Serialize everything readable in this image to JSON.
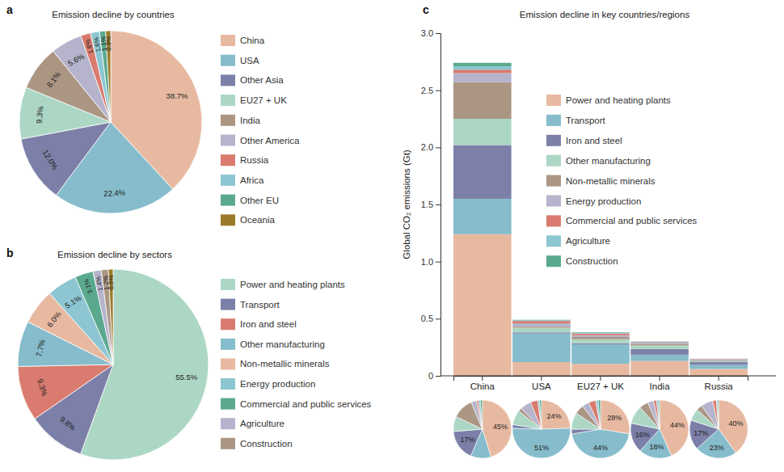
{
  "chart_data": [
    {
      "type": "pie",
      "panel": "a",
      "title": "Emission decline by countries",
      "categories": [
        "China",
        "USA",
        "Other Asia",
        "EU27 + UK",
        "India",
        "Other America",
        "Russia",
        "Africa",
        "Other EU",
        "Oceania"
      ],
      "values": [
        38.7,
        22.4,
        12.0,
        9.3,
        8.1,
        5.6,
        1.8,
        1.6,
        1.1,
        0.9
      ],
      "value_labels": [
        "38.7%",
        "22.4%",
        "12.0%",
        "9.3%",
        "8.1%",
        "5.6%",
        "1.8%",
        "1.6%",
        "1.1%",
        "0.9%"
      ],
      "colors": [
        "#e8b9a1",
        "#86bccb",
        "#7c80a8",
        "#acd7c5",
        "#ab9684",
        "#b5b4cc",
        "#d97b6e",
        "#8dc6d2",
        "#5aa98e",
        "#9b7b2b"
      ],
      "data_labels": true,
      "legend": "right"
    },
    {
      "type": "pie",
      "panel": "b",
      "title": "Emission decline by sectors",
      "categories": [
        "Power and heating plants",
        "Transport",
        "Iron and steel",
        "Other manufacturing",
        "Non-metallic minerals",
        "Energy production",
        "Commercial and public services",
        "Agriculture",
        "Construction",
        null
      ],
      "values": [
        55.5,
        9.8,
        9.3,
        7.7,
        6.0,
        5.1,
        3.1,
        1.4,
        1.2,
        0.8
      ],
      "value_labels": [
        "55.5%",
        "9.8%",
        "9.3%",
        "7.7%",
        "6.0%",
        "5.1%",
        "3.1%",
        "1.4%",
        "1.2%",
        "0.8%"
      ],
      "colors": [
        "#acd7c5",
        "#7c80a8",
        "#d97b6e",
        "#86bccb",
        "#e8b9a1",
        "#8dc6d2",
        "#5aa98e",
        "#b5b4cc",
        "#ab9684",
        "#9b7b2b"
      ],
      "data_labels": true,
      "legend": "right"
    },
    {
      "type": "bar",
      "panel": "c",
      "title": "Emission decline in key countries/regions",
      "y_label": "Global CO₂ emissions (Gt)",
      "categories": [
        "China",
        "USA",
        "EU27 + UK",
        "India",
        "Russia"
      ],
      "stacked": true,
      "legend": "top right",
      "grid": false,
      "ylim": [
        0,
        3
      ],
      "yticks": [
        0,
        0.5,
        {
          "value": 1,
          "label": "1.0"
        },
        1.5,
        {
          "value": 2,
          "label": "2.0"
        },
        2.5,
        {
          "value": 3,
          "label": "3.0"
        }
      ],
      "series": [
        {
          "name": "Power and heating plants",
          "color": "#e8b9a1",
          "values": [
            1.24,
            0.12,
            0.105,
            0.13,
            0.06
          ]
        },
        {
          "name": "Transport",
          "color": "#86bccb",
          "values": [
            0.31,
            0.25,
            0.17,
            0.055,
            0.035
          ]
        },
        {
          "name": "Iron and steel",
          "color": "#7c80a8",
          "values": [
            0.47,
            0.01,
            0.01,
            0.05,
            0.025
          ]
        },
        {
          "name": "Other manufacturing",
          "color": "#acd7c5",
          "values": [
            0.23,
            0.04,
            0.035,
            0.03,
            0.01
          ]
        },
        {
          "name": "Non-metallic minerals",
          "color": "#ab9684",
          "values": [
            0.32,
            0.01,
            0.02,
            0.015,
            0.005
          ]
        },
        {
          "name": "Energy production",
          "color": "#b5b4cc",
          "values": [
            0.08,
            0.03,
            0.015,
            0.01,
            0.01
          ]
        },
        {
          "name": "Commercial and public services",
          "color": "#d97b6e",
          "values": [
            0.03,
            0.02,
            0.015,
            0.005,
            0.003
          ]
        },
        {
          "name": "Agriculture",
          "color": "#8dc6d2",
          "values": [
            0.03,
            0.005,
            0.005,
            0.003,
            0.001
          ]
        },
        {
          "name": "Construction",
          "color": "#5aa98e",
          "values": [
            0.03,
            0.005,
            0.005,
            0.002,
            0.001
          ]
        }
      ],
      "pie_labels": [
        [
          "45%",
          null,
          "17%",
          null,
          null,
          null,
          null,
          null,
          null
        ],
        [
          "24%",
          "51%",
          null,
          null,
          null,
          null,
          null,
          null,
          null
        ],
        [
          "28%",
          "44%",
          null,
          null,
          null,
          null,
          null,
          null,
          null
        ],
        [
          "44%",
          "18%",
          "16%",
          null,
          null,
          null,
          null,
          null,
          null
        ],
        [
          "40%",
          "23%",
          "17%",
          null,
          null,
          null,
          null,
          null,
          null
        ]
      ]
    }
  ]
}
